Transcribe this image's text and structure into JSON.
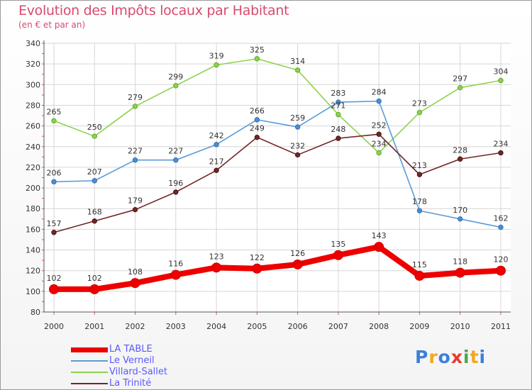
{
  "chart_data": {
    "type": "line",
    "title": "Evolution des Impôts locaux par Habitant",
    "subtitle": "(en € et par an)",
    "xlabel": "",
    "ylabel": "",
    "x": [
      "2000",
      "2001",
      "2002",
      "2003",
      "2004",
      "2005",
      "2006",
      "2007",
      "2008",
      "2009",
      "2010",
      "2011"
    ],
    "ylim": [
      80,
      340
    ],
    "yticks": [
      "80",
      "100",
      "120",
      "140",
      "160",
      "180",
      "200",
      "220",
      "240",
      "260",
      "280",
      "300",
      "320",
      "340"
    ],
    "grid": true,
    "series": [
      {
        "name": "LA TABLE",
        "color": "#ee0000",
        "values": [
          102,
          102,
          108,
          116,
          123,
          122,
          126,
          135,
          143,
          115,
          118,
          120
        ]
      },
      {
        "name": "Le Verneil",
        "color": "#5b9bd5",
        "values": [
          206,
          207,
          227,
          227,
          242,
          266,
          259,
          283,
          284,
          178,
          170,
          162
        ]
      },
      {
        "name": "Villard-Sallet",
        "color": "#8fd14f",
        "values": [
          265,
          250,
          279,
          299,
          319,
          325,
          314,
          271,
          234,
          273,
          297,
          304
        ]
      },
      {
        "name": "La Trinité",
        "color": "#722626",
        "values": [
          157,
          168,
          179,
          196,
          217,
          249,
          232,
          248,
          252,
          213,
          228,
          234
        ]
      }
    ]
  },
  "logo": {
    "text": [
      "P",
      "r",
      "o",
      "x",
      "i",
      "t",
      "i"
    ],
    "colors": [
      "#3d7fd9",
      "#f2a81d",
      "#3d7fd9",
      "#e63b2e",
      "#4aa64a",
      "#f2a81d",
      "#3d7fd9"
    ]
  }
}
